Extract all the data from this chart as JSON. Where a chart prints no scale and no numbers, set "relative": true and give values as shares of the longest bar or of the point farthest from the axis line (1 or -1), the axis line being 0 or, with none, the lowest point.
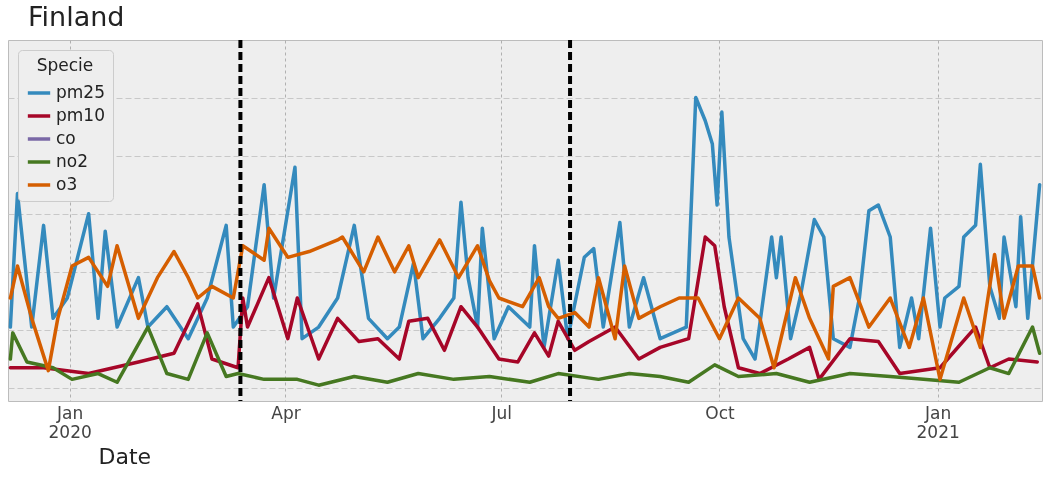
{
  "chart_data": {
    "type": "line",
    "title": "Finland",
    "xlabel": "Date",
    "legend_title": "Specie",
    "relative": true,
    "grid": true,
    "legend": "top left",
    "line_style": "solid",
    "marker": "none",
    "xlim": [
      "2019-12-06",
      "2021-02-14"
    ],
    "xticks": [
      {
        "value": "2020-01-01",
        "label": "Jan\n2020"
      },
      {
        "value": "2020-04-01",
        "label": "Apr"
      },
      {
        "value": "2020-07-01",
        "label": "Jul"
      },
      {
        "value": "2020-10-01",
        "label": "Oct"
      },
      {
        "value": "2021-01-01",
        "label": "Jan\n2021"
      }
    ],
    "ref_lines": [
      {
        "axis": "x",
        "value": "2020-03-13",
        "color": "#000000",
        "line_style": "dashed"
      },
      {
        "axis": "x",
        "value": "2020-07-30",
        "color": "#000000",
        "line_style": "dashed"
      }
    ],
    "series": [
      {
        "name": "pm25",
        "color": "#348abd",
        "x": [
          "2019-12-07",
          "2019-12-10",
          "2019-12-16",
          "2019-12-21",
          "2019-12-25",
          "2019-12-31",
          "2020-01-09",
          "2020-01-13",
          "2020-01-16",
          "2020-01-21",
          "2020-01-30",
          "2020-02-03",
          "2020-02-11",
          "2020-02-20",
          "2020-02-28",
          "2020-03-07",
          "2020-03-10",
          "2020-03-16",
          "2020-03-23",
          "2020-03-27",
          "2020-04-05",
          "2020-04-08",
          "2020-04-15",
          "2020-04-23",
          "2020-04-30",
          "2020-05-06",
          "2020-05-14",
          "2020-05-19",
          "2020-05-25",
          "2020-05-29",
          "2020-06-05",
          "2020-06-11",
          "2020-06-14",
          "2020-06-17",
          "2020-06-21",
          "2020-06-23",
          "2020-06-28",
          "2020-07-04",
          "2020-07-13",
          "2020-07-15",
          "2020-07-19",
          "2020-07-25",
          "2020-07-29",
          "2020-08-05",
          "2020-08-09",
          "2020-08-13",
          "2020-08-20",
          "2020-08-24",
          "2020-08-30",
          "2020-09-06",
          "2020-09-17",
          "2020-09-21",
          "2020-09-25",
          "2020-09-28",
          "2020-09-30",
          "2020-10-02",
          "2020-10-05",
          "2020-10-11",
          "2020-10-16",
          "2020-10-23",
          "2020-10-25",
          "2020-10-27",
          "2020-10-31",
          "2020-11-04",
          "2020-11-10",
          "2020-11-14",
          "2020-11-18",
          "2020-11-25",
          "2020-11-29",
          "2020-12-03",
          "2020-12-07",
          "2020-12-12",
          "2020-12-16",
          "2020-12-21",
          "2020-12-24",
          "2020-12-29",
          "2021-01-02",
          "2021-01-04",
          "2021-01-10",
          "2021-01-12",
          "2021-01-17",
          "2021-01-19",
          "2021-01-23",
          "2021-01-27",
          "2021-01-29",
          "2021-02-03",
          "2021-02-05",
          "2021-02-08",
          "2021-02-13"
        ],
        "values": [
          0.21,
          0.67,
          0.21,
          0.56,
          0.24,
          0.31,
          0.6,
          0.24,
          0.54,
          0.21,
          0.38,
          0.21,
          0.28,
          0.17,
          0.31,
          0.56,
          0.21,
          0.28,
          0.7,
          0.31,
          0.76,
          0.17,
          0.21,
          0.31,
          0.56,
          0.24,
          0.17,
          0.21,
          0.43,
          0.17,
          0.24,
          0.31,
          0.64,
          0.38,
          0.21,
          0.55,
          0.17,
          0.28,
          0.21,
          0.49,
          0.14,
          0.44,
          0.17,
          0.45,
          0.48,
          0.21,
          0.57,
          0.21,
          0.38,
          0.17,
          0.21,
          1.0,
          0.92,
          0.84,
          0.63,
          0.95,
          0.52,
          0.17,
          0.1,
          0.52,
          0.38,
          0.52,
          0.17,
          0.31,
          0.58,
          0.52,
          0.17,
          0.14,
          0.31,
          0.61,
          0.63,
          0.52,
          0.14,
          0.31,
          0.17,
          0.55,
          0.21,
          0.31,
          0.35,
          0.52,
          0.56,
          0.77,
          0.35,
          0.24,
          0.52,
          0.28,
          0.59,
          0.24,
          0.7
        ]
      },
      {
        "name": "pm10",
        "color": "#a60628",
        "x": [
          "2019-12-07",
          "2019-12-21",
          "2020-01-09",
          "2020-01-30",
          "2020-02-14",
          "2020-02-24",
          "2020-03-01",
          "2020-03-12",
          "2020-03-14",
          "2020-03-16",
          "2020-03-25",
          "2020-04-02",
          "2020-04-06",
          "2020-04-15",
          "2020-04-23",
          "2020-05-02",
          "2020-05-10",
          "2020-05-19",
          "2020-05-23",
          "2020-05-31",
          "2020-06-07",
          "2020-06-14",
          "2020-06-21",
          "2020-06-30",
          "2020-07-08",
          "2020-07-15",
          "2020-07-21",
          "2020-07-25",
          "2020-08-01",
          "2020-08-07",
          "2020-08-18",
          "2020-08-28",
          "2020-09-06",
          "2020-09-18",
          "2020-09-25",
          "2020-09-29",
          "2020-10-03",
          "2020-10-09",
          "2020-10-18",
          "2020-10-30",
          "2020-11-08",
          "2020-11-12",
          "2020-11-25",
          "2020-12-07",
          "2020-12-16",
          "2021-01-02",
          "2021-01-17",
          "2021-01-23",
          "2021-01-31",
          "2021-02-12"
        ],
        "values": [
          0.07,
          0.07,
          0.05,
          0.09,
          0.12,
          0.29,
          0.1,
          0.07,
          0.31,
          0.21,
          0.38,
          0.17,
          0.31,
          0.1,
          0.24,
          0.16,
          0.17,
          0.1,
          0.23,
          0.24,
          0.13,
          0.28,
          0.21,
          0.1,
          0.09,
          0.19,
          0.11,
          0.23,
          0.13,
          0.16,
          0.21,
          0.1,
          0.14,
          0.17,
          0.52,
          0.49,
          0.28,
          0.07,
          0.05,
          0.1,
          0.14,
          0.03,
          0.17,
          0.16,
          0.05,
          0.07,
          0.21,
          0.07,
          0.1,
          0.09
        ]
      },
      {
        "name": "co",
        "color": "#7a68a6"
      },
      {
        "name": "no2",
        "color": "#467821",
        "x": [
          "2019-12-07",
          "2019-12-08",
          "2019-12-14",
          "2019-12-25",
          "2020-01-02",
          "2020-01-13",
          "2020-01-21",
          "2020-02-03",
          "2020-02-11",
          "2020-02-20",
          "2020-02-28",
          "2020-03-07",
          "2020-03-12",
          "2020-03-23",
          "2020-04-06",
          "2020-04-15",
          "2020-04-30",
          "2020-05-14",
          "2020-05-27",
          "2020-06-11",
          "2020-06-26",
          "2020-07-13",
          "2020-07-25",
          "2020-08-11",
          "2020-08-24",
          "2020-09-06",
          "2020-09-18",
          "2020-09-29",
          "2020-10-09",
          "2020-10-25",
          "2020-11-08",
          "2020-11-25",
          "2020-12-12",
          "2020-12-26",
          "2021-01-10",
          "2021-01-23",
          "2021-01-31",
          "2021-02-10",
          "2021-02-13"
        ],
        "values": [
          0.1,
          0.19,
          0.09,
          0.07,
          0.03,
          0.05,
          0.02,
          0.21,
          0.05,
          0.03,
          0.19,
          0.04,
          0.05,
          0.03,
          0.03,
          0.01,
          0.04,
          0.02,
          0.05,
          0.03,
          0.04,
          0.02,
          0.05,
          0.03,
          0.05,
          0.04,
          0.02,
          0.08,
          0.04,
          0.05,
          0.02,
          0.05,
          0.04,
          0.03,
          0.02,
          0.07,
          0.05,
          0.21,
          0.12
        ]
      },
      {
        "name": "o3",
        "color": "#d55e00",
        "x": [
          "2019-12-07",
          "2019-12-10",
          "2019-12-16",
          "2019-12-23",
          "2019-12-27",
          "2020-01-02",
          "2020-01-09",
          "2020-01-17",
          "2020-01-21",
          "2020-01-30",
          "2020-02-07",
          "2020-02-14",
          "2020-02-20",
          "2020-02-24",
          "2020-03-01",
          "2020-03-10",
          "2020-03-14",
          "2020-03-23",
          "2020-03-25",
          "2020-04-02",
          "2020-04-11",
          "2020-04-23",
          "2020-04-25",
          "2020-05-04",
          "2020-05-10",
          "2020-05-17",
          "2020-05-23",
          "2020-05-27",
          "2020-06-05",
          "2020-06-13",
          "2020-06-21",
          "2020-06-26",
          "2020-06-30",
          "2020-07-10",
          "2020-07-17",
          "2020-07-21",
          "2020-07-25",
          "2020-08-01",
          "2020-08-07",
          "2020-08-11",
          "2020-08-18",
          "2020-08-22",
          "2020-08-28",
          "2020-09-06",
          "2020-09-14",
          "2020-09-22",
          "2020-10-01",
          "2020-10-09",
          "2020-10-18",
          "2020-10-24",
          "2020-11-02",
          "2020-11-08",
          "2020-11-16",
          "2020-11-18",
          "2020-11-25",
          "2020-12-03",
          "2020-12-12",
          "2020-12-20",
          "2020-12-26",
          "2021-01-02",
          "2021-01-12",
          "2021-01-19",
          "2021-01-25",
          "2021-01-29",
          "2021-02-04",
          "2021-02-10",
          "2021-02-13"
        ],
        "values": [
          0.31,
          0.42,
          0.24,
          0.06,
          0.24,
          0.42,
          0.45,
          0.35,
          0.49,
          0.24,
          0.38,
          0.47,
          0.38,
          0.31,
          0.35,
          0.31,
          0.49,
          0.44,
          0.55,
          0.45,
          0.47,
          0.51,
          0.52,
          0.4,
          0.52,
          0.4,
          0.49,
          0.38,
          0.51,
          0.38,
          0.49,
          0.37,
          0.31,
          0.28,
          0.38,
          0.28,
          0.24,
          0.26,
          0.21,
          0.38,
          0.17,
          0.42,
          0.24,
          0.28,
          0.31,
          0.31,
          0.17,
          0.31,
          0.24,
          0.07,
          0.38,
          0.24,
          0.1,
          0.35,
          0.38,
          0.21,
          0.31,
          0.14,
          0.31,
          0.03,
          0.31,
          0.14,
          0.46,
          0.24,
          0.42,
          0.42,
          0.31
        ]
      }
    ]
  }
}
